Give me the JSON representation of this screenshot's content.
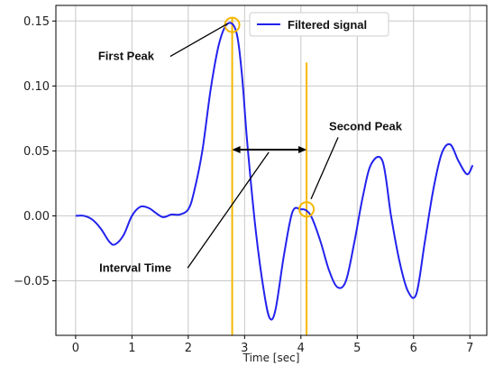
{
  "chart_data": {
    "type": "line",
    "title": "",
    "xlabel": "Time [sec]",
    "ylabel": "",
    "xlim": [
      -0.35,
      7.3
    ],
    "ylim": [
      -0.092,
      0.162
    ],
    "xticks": [
      0,
      1,
      2,
      3,
      4,
      5,
      6,
      7
    ],
    "yticks": [
      -0.05,
      0.0,
      0.05,
      0.1,
      0.15
    ],
    "xtick_labels": [
      "0",
      "1",
      "2",
      "3",
      "4",
      "5",
      "6",
      "7"
    ],
    "ytick_labels": [
      "−0.05",
      "0.00",
      "0.05",
      "0.10",
      "0.15"
    ],
    "grid": true,
    "legend_position": "top-right",
    "series": [
      {
        "name": "Filtered signal",
        "color": "#2222ee",
        "x": [
          0,
          0.15,
          0.3,
          0.45,
          0.6,
          0.7,
          0.85,
          1.0,
          1.15,
          1.3,
          1.4,
          1.55,
          1.7,
          1.85,
          2.0,
          2.1,
          2.25,
          2.4,
          2.55,
          2.7,
          2.85,
          2.95,
          3.05,
          3.2,
          3.35,
          3.45,
          3.55,
          3.7,
          3.85,
          4.0,
          4.1,
          4.2,
          4.35,
          4.5,
          4.65,
          4.8,
          4.95,
          5.1,
          5.25,
          5.45,
          5.6,
          5.75,
          5.9,
          6.05,
          6.2,
          6.35,
          6.5,
          6.65,
          6.8,
          6.95,
          7.05
        ],
        "y": [
          0.0,
          0.0,
          -0.003,
          -0.01,
          -0.02,
          -0.022,
          -0.015,
          0.0,
          0.007,
          0.006,
          0.003,
          -0.001,
          0.001,
          0.001,
          0.005,
          0.018,
          0.05,
          0.098,
          0.133,
          0.148,
          0.142,
          0.11,
          0.055,
          -0.012,
          -0.06,
          -0.079,
          -0.072,
          -0.03,
          0.003,
          0.005,
          0.004,
          -0.002,
          -0.02,
          -0.042,
          -0.055,
          -0.05,
          -0.02,
          0.015,
          0.04,
          0.042,
          0.0,
          -0.035,
          -0.058,
          -0.06,
          -0.02,
          0.02,
          0.048,
          0.055,
          0.042,
          0.032,
          0.039
        ]
      }
    ],
    "reference_lines": [
      {
        "x": 2.78,
        "y_from": -0.092,
        "y_to": 0.152,
        "color": "#f5b800"
      },
      {
        "x": 4.1,
        "y_from": -0.092,
        "y_to": 0.118,
        "color": "#f5b800"
      }
    ],
    "markers": [
      {
        "x": 2.78,
        "y": 0.147,
        "color": "#f5b800"
      },
      {
        "x": 4.1,
        "y": 0.005,
        "color": "#f5b800"
      }
    ],
    "interval_arrow": {
      "x_from": 2.78,
      "x_to": 4.1,
      "y": 0.051
    },
    "annotations": [
      {
        "text": "First Peak",
        "x": 0.4,
        "y": 0.12,
        "target_x": 2.7,
        "target_y": 0.148
      },
      {
        "text": "Second Peak",
        "x": 4.5,
        "y": 0.066,
        "target_x": 4.18,
        "target_y": 0.013
      },
      {
        "text": "Interval Time",
        "x": 0.42,
        "y": -0.043,
        "target_x": 3.43,
        "target_y": 0.049
      }
    ]
  }
}
